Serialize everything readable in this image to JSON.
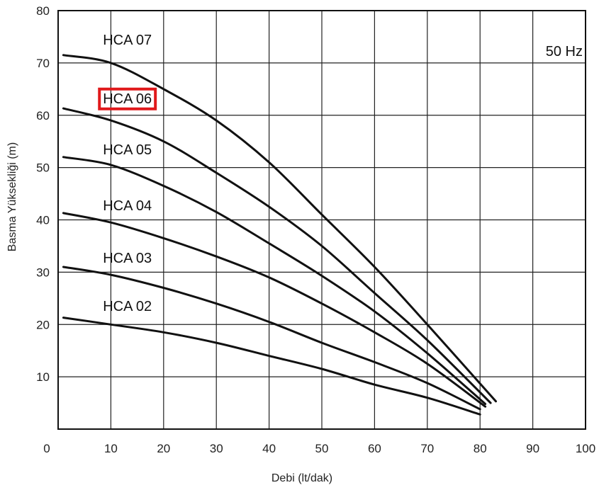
{
  "chart_data": {
    "type": "line",
    "title": "",
    "annotation": "50 Hz",
    "xlabel": "Debi (lt/dak)",
    "ylabel": "Basma Yüksekliği (m)",
    "xlim": [
      0,
      100
    ],
    "ylim": [
      0,
      80
    ],
    "x_ticks": [
      0,
      10,
      20,
      30,
      40,
      50,
      60,
      70,
      80,
      90,
      100
    ],
    "y_ticks": [
      10,
      20,
      30,
      40,
      50,
      60,
      70,
      80
    ],
    "grid": true,
    "highlighted_series": "HCA 06",
    "highlight_color": "#e0191b",
    "line_color": "#111111",
    "series": [
      {
        "name": "HCA 07",
        "x": [
          1,
          10,
          20,
          30,
          40,
          50,
          60,
          70,
          83
        ],
        "y": [
          71.5,
          70,
          65,
          59,
          51,
          41,
          31,
          20,
          5.3
        ]
      },
      {
        "name": "HCA 06",
        "x": [
          1,
          10,
          20,
          30,
          40,
          50,
          60,
          70,
          82
        ],
        "y": [
          61.3,
          59,
          55,
          49,
          42.5,
          35,
          26,
          17,
          5
        ]
      },
      {
        "name": "HCA 05",
        "x": [
          1,
          10,
          20,
          30,
          40,
          50,
          60,
          70,
          81
        ],
        "y": [
          52,
          50.5,
          46.5,
          41.5,
          35.5,
          29.3,
          22.5,
          14.5,
          4.8
        ]
      },
      {
        "name": "HCA 04",
        "x": [
          1,
          10,
          20,
          30,
          40,
          50,
          60,
          70,
          81
        ],
        "y": [
          41.3,
          39.5,
          36.5,
          33,
          29,
          24,
          18.5,
          12.5,
          4.3
        ]
      },
      {
        "name": "HCA 03",
        "x": [
          1,
          10,
          20,
          30,
          40,
          50,
          60,
          70,
          80
        ],
        "y": [
          31,
          29.5,
          27,
          24,
          20.5,
          16.5,
          12.8,
          8.8,
          3.8
        ]
      },
      {
        "name": "HCA 02",
        "x": [
          1,
          10,
          20,
          30,
          40,
          50,
          60,
          70,
          80
        ],
        "y": [
          21.3,
          20,
          18.5,
          16.5,
          14,
          11.5,
          8.5,
          6,
          2.8
        ]
      }
    ]
  }
}
